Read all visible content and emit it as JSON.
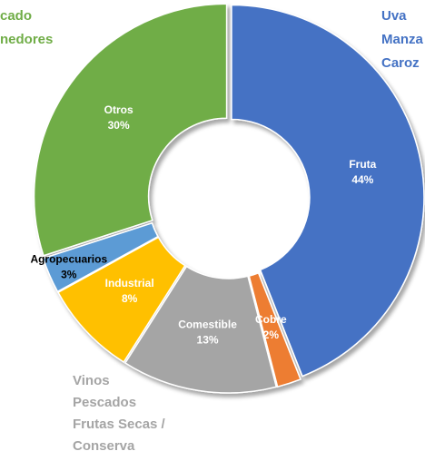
{
  "chart_data": {
    "type": "donut",
    "categories": [
      "Fruta",
      "Cobre",
      "Comestible",
      "Industrial",
      "Agropecuarios",
      "Otros"
    ],
    "values": [
      44,
      2,
      13,
      8,
      3,
      30
    ],
    "value_labels": [
      "44%",
      "2%",
      "13%",
      "8%",
      "3%",
      "30%"
    ],
    "colors": [
      "#4472c4",
      "#ed7d31",
      "#a5a5a5",
      "#ffc000",
      "#5b9bd5",
      "#70ad47"
    ],
    "annotations": [
      {
        "lines": [
          "cado",
          "nedores"
        ],
        "color": "#70ad47"
      },
      {
        "lines": [
          "Uva",
          "Manza",
          "Caroz"
        ],
        "color": "#4472c4"
      },
      {
        "lines": [
          "Vinos",
          "Pescados",
          "Frutas Secas /",
          "Conserva"
        ],
        "color": "#a5a5a5"
      }
    ]
  }
}
